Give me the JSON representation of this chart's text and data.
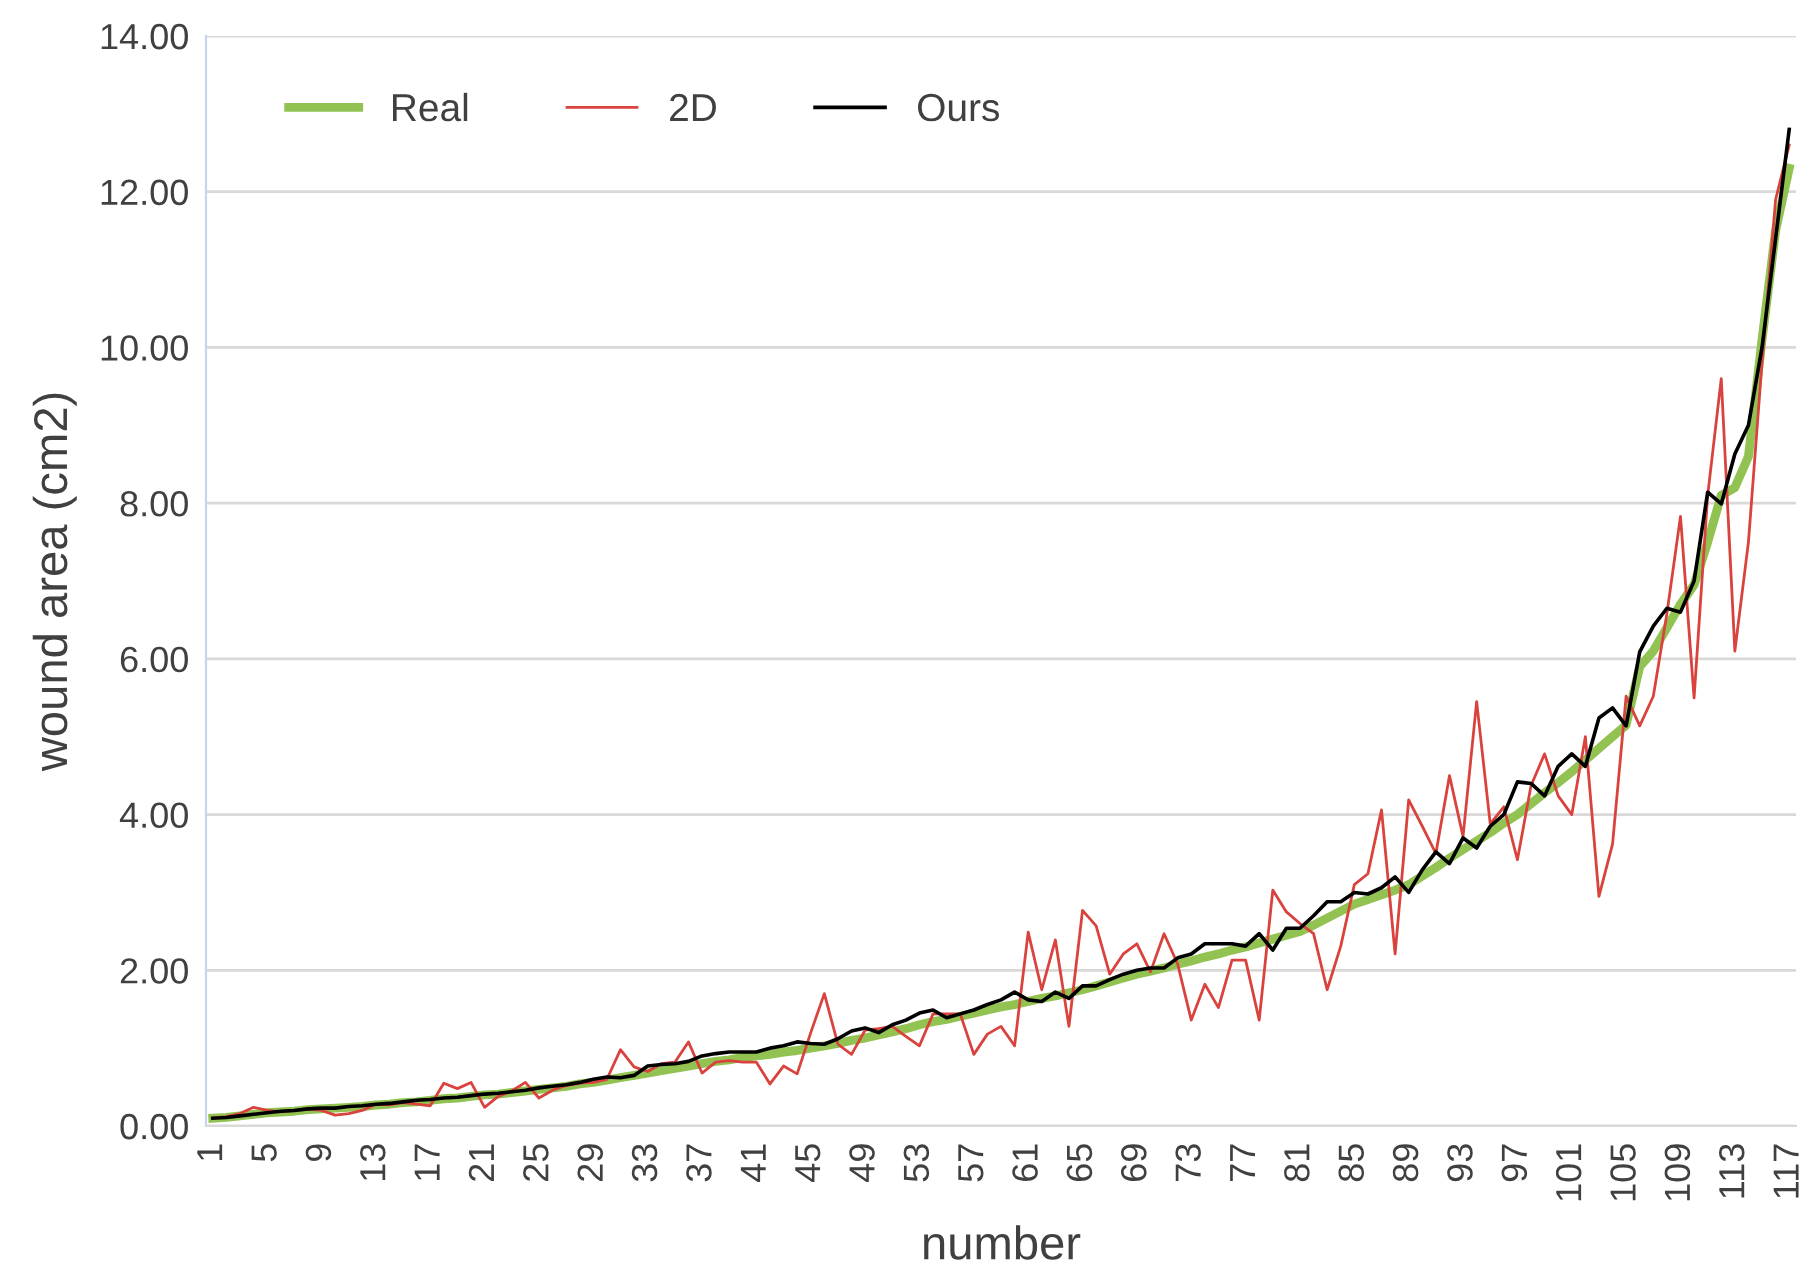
{
  "chart_data": {
    "type": "line",
    "xlabel": "number",
    "ylabel": "wound area (cm2)",
    "categories": [
      "1",
      null,
      null,
      null,
      "5",
      null,
      null,
      null,
      "9",
      null,
      null,
      null,
      "13",
      null,
      null,
      null,
      "17",
      null,
      null,
      null,
      "21",
      null,
      null,
      null,
      "25",
      null,
      null,
      null,
      "29",
      null,
      null,
      null,
      "33",
      null,
      null,
      null,
      "37",
      null,
      null,
      null,
      "41",
      null,
      null,
      null,
      "45",
      null,
      null,
      null,
      "49",
      null,
      null,
      null,
      "53",
      null,
      null,
      null,
      "57",
      null,
      null,
      null,
      "61",
      null,
      null,
      null,
      "65",
      null,
      null,
      null,
      "69",
      null,
      null,
      null,
      "73",
      null,
      null,
      null,
      "77",
      null,
      null,
      null,
      "81",
      null,
      null,
      null,
      "85",
      null,
      null,
      null,
      "89",
      null,
      null,
      null,
      "93",
      null,
      null,
      null,
      "97",
      null,
      null,
      null,
      "101",
      null,
      null,
      null,
      "105",
      null,
      null,
      null,
      "109",
      null,
      null,
      null,
      "113",
      null,
      null,
      null,
      "117"
    ],
    "series": [
      {
        "name": "Real",
        "color": "#92c352",
        "values": [
          0.1,
          0.11,
          0.13,
          0.15,
          0.17,
          0.18,
          0.19,
          0.21,
          0.22,
          0.23,
          0.24,
          0.25,
          0.27,
          0.28,
          0.3,
          0.31,
          0.33,
          0.35,
          0.36,
          0.38,
          0.4,
          0.41,
          0.43,
          0.45,
          0.47,
          0.49,
          0.51,
          0.54,
          0.56,
          0.59,
          0.62,
          0.65,
          0.68,
          0.71,
          0.74,
          0.77,
          0.8,
          0.83,
          0.85,
          0.88,
          0.9,
          0.92,
          0.95,
          0.97,
          1.0,
          1.03,
          1.06,
          1.1,
          1.13,
          1.17,
          1.21,
          1.25,
          1.3,
          1.34,
          1.37,
          1.41,
          1.45,
          1.49,
          1.53,
          1.56,
          1.6,
          1.64,
          1.67,
          1.71,
          1.75,
          1.8,
          1.85,
          1.9,
          1.95,
          1.99,
          2.03,
          2.08,
          2.12,
          2.17,
          2.21,
          2.26,
          2.3,
          2.35,
          2.4,
          2.45,
          2.5,
          2.58,
          2.67,
          2.76,
          2.85,
          2.91,
          2.97,
          3.03,
          3.1,
          3.21,
          3.32,
          3.44,
          3.55,
          3.66,
          3.77,
          3.89,
          4.0,
          4.14,
          4.28,
          4.41,
          4.55,
          4.7,
          4.85,
          5.0,
          5.15,
          5.9,
          6.1,
          6.4,
          6.7,
          6.95,
          7.5,
          8.1,
          8.2,
          8.6,
          10.1,
          11.5,
          12.3
        ]
      },
      {
        "name": "2D",
        "color": "#d9423d",
        "values": [
          0.1,
          0.12,
          0.16,
          0.24,
          0.2,
          0.18,
          0.2,
          0.22,
          0.2,
          0.14,
          0.16,
          0.2,
          0.28,
          0.27,
          0.3,
          0.28,
          0.26,
          0.55,
          0.48,
          0.56,
          0.24,
          0.38,
          0.45,
          0.56,
          0.36,
          0.46,
          0.52,
          0.55,
          0.56,
          0.6,
          0.98,
          0.76,
          0.7,
          0.8,
          0.82,
          1.08,
          0.68,
          0.82,
          0.84,
          0.82,
          0.82,
          0.54,
          0.77,
          0.67,
          1.2,
          1.7,
          1.05,
          0.92,
          1.23,
          1.25,
          1.28,
          1.15,
          1.03,
          1.44,
          1.44,
          1.44,
          0.92,
          1.18,
          1.28,
          1.03,
          2.49,
          1.75,
          2.39,
          1.28,
          2.77,
          2.57,
          1.95,
          2.21,
          2.34,
          1.98,
          2.47,
          2.08,
          1.36,
          1.82,
          1.52,
          2.13,
          2.13,
          1.36,
          3.03,
          2.75,
          2.6,
          2.47,
          1.75,
          2.31,
          3.1,
          3.24,
          4.06,
          2.21,
          4.19,
          3.85,
          3.5,
          4.5,
          3.72,
          5.45,
          3.88,
          4.1,
          3.42,
          4.37,
          4.78,
          4.24,
          4.0,
          5.0,
          2.95,
          3.62,
          5.52,
          5.14,
          5.52,
          6.58,
          7.83,
          5.5,
          8.1,
          9.6,
          6.1,
          7.5,
          9.8,
          11.9,
          12.6
        ]
      },
      {
        "name": "Ours",
        "color": "#000000",
        "values": [
          0.1,
          0.11,
          0.13,
          0.15,
          0.17,
          0.19,
          0.2,
          0.22,
          0.23,
          0.23,
          0.25,
          0.26,
          0.28,
          0.29,
          0.31,
          0.33,
          0.34,
          0.36,
          0.37,
          0.39,
          0.41,
          0.42,
          0.44,
          0.46,
          0.49,
          0.51,
          0.53,
          0.56,
          0.6,
          0.63,
          0.62,
          0.65,
          0.77,
          0.79,
          0.8,
          0.83,
          0.9,
          0.93,
          0.95,
          0.95,
          0.95,
          1.0,
          1.03,
          1.08,
          1.06,
          1.05,
          1.12,
          1.22,
          1.26,
          1.2,
          1.3,
          1.36,
          1.45,
          1.49,
          1.39,
          1.44,
          1.49,
          1.56,
          1.62,
          1.72,
          1.62,
          1.6,
          1.72,
          1.64,
          1.8,
          1.8,
          1.88,
          1.95,
          2.0,
          2.03,
          2.03,
          2.16,
          2.21,
          2.34,
          2.34,
          2.34,
          2.31,
          2.47,
          2.26,
          2.54,
          2.54,
          2.7,
          2.88,
          2.88,
          3.0,
          2.98,
          3.06,
          3.2,
          3.0,
          3.29,
          3.52,
          3.37,
          3.7,
          3.57,
          3.85,
          4.0,
          4.42,
          4.4,
          4.24,
          4.62,
          4.78,
          4.62,
          5.24,
          5.37,
          5.14,
          6.09,
          6.42,
          6.65,
          6.6,
          7.0,
          8.14,
          7.99,
          8.63,
          9.0,
          10.0,
          11.4,
          12.8
        ]
      }
    ],
    "ylim": [
      0,
      14
    ],
    "yticks": [
      {
        "value": 0,
        "label": "0.00"
      },
      {
        "value": 2,
        "label": "2.00"
      },
      {
        "value": 4,
        "label": "4.00"
      },
      {
        "value": 6,
        "label": "6.00"
      },
      {
        "value": 8,
        "label": "8.00"
      },
      {
        "value": 10,
        "label": "10.00"
      },
      {
        "value": 12,
        "label": "12.00"
      },
      {
        "value": 14,
        "label": "14.00"
      }
    ],
    "grid": "y",
    "legend": "top left",
    "marker": "none",
    "line_style": "solid"
  }
}
